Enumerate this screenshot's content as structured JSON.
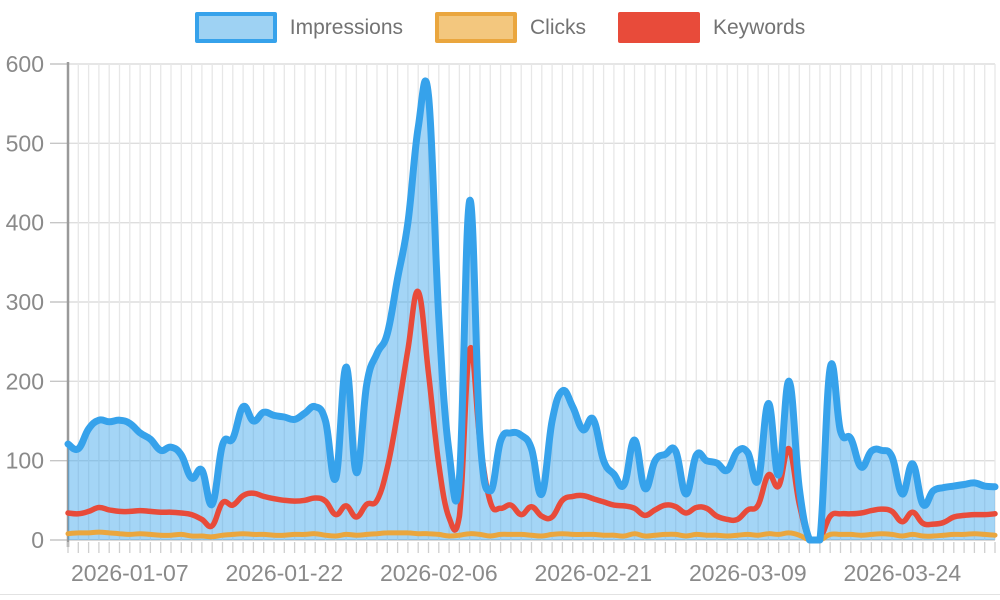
{
  "chart_data": {
    "type": "area",
    "title": "",
    "legend_position": "top",
    "grid": true,
    "n_points": 91,
    "y_axis": {
      "min": 0,
      "max": 600,
      "step": 100,
      "tick_labels": [
        "0",
        "100",
        "200",
        "300",
        "400",
        "500",
        "600"
      ]
    },
    "x_tick_labels": [
      {
        "index": 6,
        "label": "2026-01-07"
      },
      {
        "index": 21,
        "label": "2026-01-22"
      },
      {
        "index": 36,
        "label": "2026-02-06"
      },
      {
        "index": 51,
        "label": "2026-02-21"
      },
      {
        "index": 66,
        "label": "2026-03-09"
      },
      {
        "index": 81,
        "label": "2026-03-24"
      }
    ],
    "series": [
      {
        "name": "Impressions",
        "style": "area",
        "line_color": "#36a2eb",
        "fill_color": "rgba(54,162,235,0.45)",
        "legend_fill": "#9ed2f3",
        "line_width": 7,
        "values": [
          121,
          115,
          140,
          151,
          149,
          151,
          147,
          135,
          127,
          113,
          117,
          107,
          78,
          88,
          45,
          120,
          128,
          168,
          150,
          161,
          157,
          155,
          152,
          160,
          168,
          150,
          78,
          218,
          85,
          196,
          235,
          260,
          330,
          400,
          520,
          560,
          280,
          110,
          78,
          428,
          130,
          62,
          125,
          135,
          132,
          115,
          58,
          150,
          188,
          168,
          139,
          152,
          100,
          83,
          70,
          126,
          65,
          100,
          108,
          112,
          58,
          107,
          100,
          97,
          88,
          112,
          110,
          75,
          172,
          82,
          200,
          65,
          0,
          0,
          217,
          137,
          128,
          92,
          112,
          113,
          105,
          58,
          96,
          45,
          62,
          66,
          68,
          70,
          72,
          68,
          67
        ]
      },
      {
        "name": "Clicks",
        "style": "line",
        "line_color": "#eaa63e",
        "fill_color": "#f3c77e",
        "legend_fill": "#f3c77e",
        "line_width": 5,
        "values": [
          8,
          9,
          9,
          10,
          9,
          8,
          7,
          8,
          7,
          6,
          6,
          7,
          5,
          5,
          4,
          6,
          7,
          8,
          7,
          7,
          6,
          6,
          7,
          7,
          8,
          6,
          5,
          7,
          6,
          7,
          8,
          9,
          9,
          9,
          8,
          8,
          7,
          5,
          6,
          8,
          7,
          5,
          7,
          7,
          7,
          6,
          5,
          7,
          8,
          7,
          7,
          7,
          6,
          6,
          5,
          8,
          5,
          6,
          7,
          7,
          5,
          7,
          6,
          6,
          5,
          6,
          7,
          6,
          8,
          7,
          9,
          6,
          0,
          0,
          7,
          7,
          7,
          6,
          7,
          8,
          7,
          5,
          7,
          5,
          5,
          6,
          7,
          7,
          8,
          7,
          6
        ]
      },
      {
        "name": "Keywords",
        "style": "line",
        "line_color": "#e84b3a",
        "fill_color": "#e84b3a",
        "legend_fill": "#e84b3a",
        "line_width": 5.5,
        "values": [
          34,
          33,
          36,
          41,
          38,
          36,
          36,
          37,
          36,
          35,
          35,
          34,
          32,
          26,
          18,
          47,
          44,
          56,
          59,
          55,
          52,
          50,
          49,
          50,
          53,
          49,
          32,
          43,
          29,
          45,
          50,
          91,
          160,
          240,
          313,
          210,
          95,
          28,
          30,
          240,
          124,
          48,
          40,
          44,
          32,
          42,
          30,
          29,
          50,
          55,
          56,
          52,
          48,
          44,
          43,
          40,
          31,
          38,
          44,
          42,
          34,
          41,
          40,
          30,
          26,
          26,
          38,
          44,
          82,
          68,
          115,
          45,
          1,
          2,
          30,
          33,
          33,
          34,
          37,
          39,
          36,
          23,
          35,
          21,
          20,
          22,
          29,
          31,
          32,
          32,
          33
        ]
      }
    ]
  }
}
